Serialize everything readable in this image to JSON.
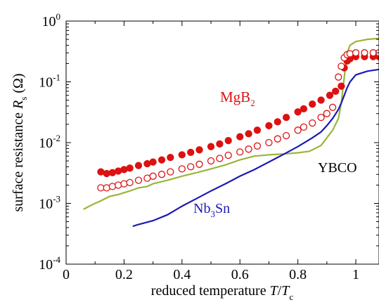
{
  "chart_data": {
    "type": "scatter",
    "xlabel": {
      "main": "reduced temperature ",
      "var": "T",
      "slash": "/",
      "var2": "T",
      "sub": "c"
    },
    "ylabel": {
      "main": "surface resistance ",
      "var": "R",
      "sub": "s",
      "unit": " (Ω)"
    },
    "xlim": [
      0,
      1.08
    ],
    "ylim": [
      0.0001,
      1
    ],
    "yscale": "log",
    "xticks": [
      {
        "v": 0,
        "label": "0"
      },
      {
        "v": 0.2,
        "label": "0.2"
      },
      {
        "v": 0.4,
        "label": "0.4"
      },
      {
        "v": 0.6,
        "label": "0.6"
      },
      {
        "v": 0.8,
        "label": "0.8"
      },
      {
        "v": 1.0,
        "label": "1"
      }
    ],
    "yticks": [
      {
        "v": 0.0001,
        "base": "10",
        "exp": "-4"
      },
      {
        "v": 0.001,
        "base": "10",
        "exp": "-3"
      },
      {
        "v": 0.01,
        "base": "10",
        "exp": "-2"
      },
      {
        "v": 0.1,
        "base": "10",
        "exp": "-1"
      },
      {
        "v": 1,
        "base": "10",
        "exp": "0"
      }
    ],
    "grid": false,
    "series": [
      {
        "name": "YBCO",
        "style": "line",
        "color": "#9ab53a",
        "x": [
          0.06,
          0.08,
          0.1,
          0.12,
          0.15,
          0.18,
          0.2,
          0.22,
          0.25,
          0.28,
          0.3,
          0.35,
          0.4,
          0.45,
          0.5,
          0.55,
          0.6,
          0.65,
          0.7,
          0.75,
          0.8,
          0.84,
          0.88,
          0.9,
          0.92,
          0.94,
          0.95,
          0.96,
          0.97,
          0.98,
          1.0,
          1.04,
          1.08
        ],
        "y": [
          0.0008,
          0.0009,
          0.001,
          0.0011,
          0.0013,
          0.0014,
          0.0015,
          0.0016,
          0.0018,
          0.0019,
          0.0021,
          0.0024,
          0.0028,
          0.0032,
          0.0037,
          0.0043,
          0.0052,
          0.006,
          0.0063,
          0.0065,
          0.0068,
          0.0072,
          0.009,
          0.012,
          0.016,
          0.025,
          0.045,
          0.12,
          0.3,
          0.4,
          0.46,
          0.5,
          0.52
        ]
      },
      {
        "name": "Nb3Sn",
        "label": {
          "base": "Nb",
          "sub": "3",
          "tail": "Sn"
        },
        "style": "line",
        "color": "#1a1ab5",
        "x": [
          0.23,
          0.25,
          0.3,
          0.35,
          0.4,
          0.45,
          0.5,
          0.55,
          0.6,
          0.65,
          0.7,
          0.75,
          0.8,
          0.85,
          0.88,
          0.9,
          0.92,
          0.94,
          0.95,
          0.96,
          0.97,
          0.98,
          1.0,
          1.04,
          1.08
        ],
        "y": [
          0.00042,
          0.00045,
          0.00052,
          0.00065,
          0.0009,
          0.0012,
          0.0016,
          0.0021,
          0.0028,
          0.0036,
          0.0048,
          0.0064,
          0.0086,
          0.012,
          0.015,
          0.019,
          0.025,
          0.035,
          0.045,
          0.06,
          0.08,
          0.1,
          0.13,
          0.15,
          0.16
        ]
      },
      {
        "name": "MgB2",
        "label": {
          "base": "MgB",
          "sub": "2",
          "tail": ""
        },
        "style": "markers-filled",
        "color": "#dd1111",
        "x": [
          0.12,
          0.14,
          0.16,
          0.18,
          0.2,
          0.22,
          0.25,
          0.28,
          0.3,
          0.33,
          0.36,
          0.4,
          0.43,
          0.46,
          0.5,
          0.53,
          0.56,
          0.6,
          0.63,
          0.66,
          0.7,
          0.73,
          0.76,
          0.8,
          0.82,
          0.85,
          0.88,
          0.91,
          0.93,
          0.95,
          0.96,
          0.97,
          0.98,
          1.0,
          1.03,
          1.06,
          1.08
        ],
        "y": [
          0.0033,
          0.0031,
          0.0032,
          0.0034,
          0.0036,
          0.0038,
          0.0042,
          0.0045,
          0.0048,
          0.0052,
          0.0057,
          0.0063,
          0.0069,
          0.0076,
          0.0086,
          0.0095,
          0.0108,
          0.0125,
          0.014,
          0.016,
          0.019,
          0.022,
          0.026,
          0.032,
          0.036,
          0.043,
          0.05,
          0.06,
          0.07,
          0.085,
          0.17,
          0.22,
          0.24,
          0.26,
          0.26,
          0.26,
          0.26
        ]
      },
      {
        "name": "MgB2 (open)",
        "style": "markers-open",
        "color": "#dd1111",
        "x": [
          0.12,
          0.14,
          0.16,
          0.18,
          0.2,
          0.22,
          0.25,
          0.28,
          0.3,
          0.33,
          0.36,
          0.4,
          0.43,
          0.46,
          0.5,
          0.53,
          0.56,
          0.6,
          0.63,
          0.66,
          0.7,
          0.73,
          0.76,
          0.8,
          0.82,
          0.85,
          0.88,
          0.9,
          0.92,
          0.94,
          0.95,
          0.96,
          0.97,
          0.98,
          1.0,
          1.03,
          1.06,
          1.08
        ],
        "y": [
          0.0018,
          0.0018,
          0.0019,
          0.002,
          0.0021,
          0.0022,
          0.0024,
          0.0026,
          0.0028,
          0.003,
          0.0033,
          0.0037,
          0.004,
          0.0044,
          0.005,
          0.0055,
          0.0062,
          0.007,
          0.0078,
          0.0088,
          0.01,
          0.0115,
          0.013,
          0.016,
          0.018,
          0.021,
          0.026,
          0.03,
          0.038,
          0.12,
          0.18,
          0.25,
          0.28,
          0.29,
          0.3,
          0.3,
          0.3,
          0.3
        ]
      }
    ]
  }
}
